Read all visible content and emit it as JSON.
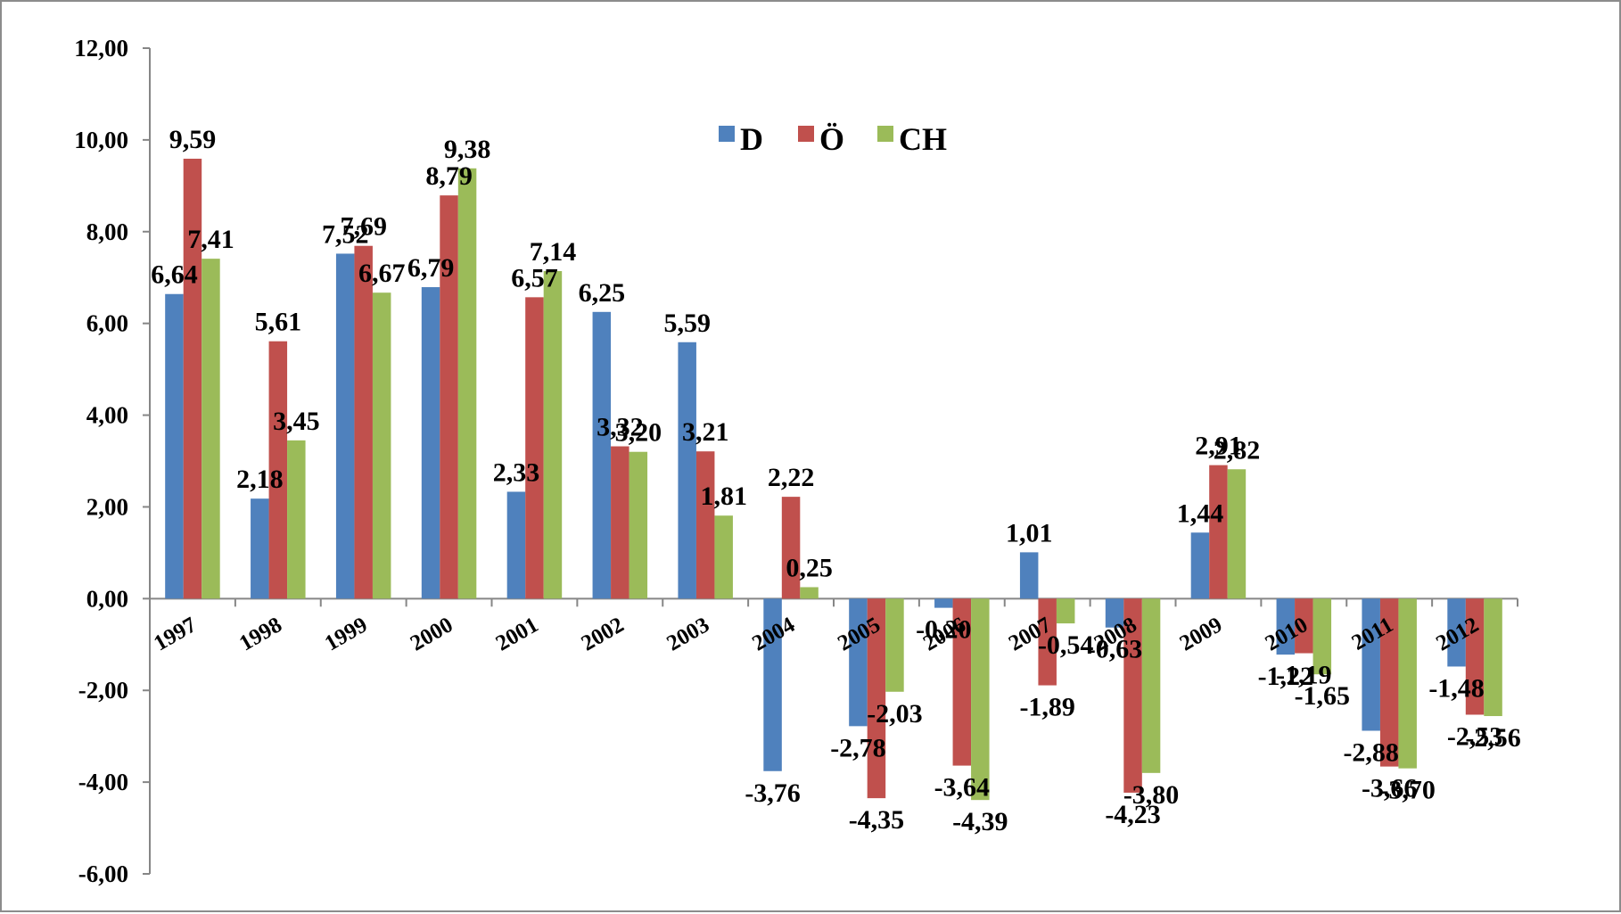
{
  "chart_data": {
    "type": "bar",
    "title": "",
    "xlabel": "",
    "ylabel": "",
    "ylim": [
      -6,
      12
    ],
    "yticks": [
      "12,00",
      "10,00",
      "8,00",
      "6,00",
      "4,00",
      "2,00",
      "0,00",
      "-2,00",
      "-4,00",
      "-6,00"
    ],
    "ytick_values": [
      12,
      10,
      8,
      6,
      4,
      2,
      0,
      -2,
      -4,
      -6
    ],
    "grid": false,
    "legend_position": "top-center",
    "categories": [
      "1997",
      "1998",
      "1999",
      "2000",
      "2001",
      "2002",
      "2003",
      "2004",
      "2005",
      "2006",
      "2007",
      "2008",
      "2009",
      "2010",
      "2011",
      "2012"
    ],
    "series": [
      {
        "name": "D",
        "color": "#4f81bd",
        "values": [
          6.64,
          2.18,
          7.52,
          6.79,
          2.33,
          6.25,
          5.59,
          -3.76,
          -2.78,
          -0.2,
          1.01,
          -0.63,
          1.44,
          -1.22,
          -2.88,
          -1.48
        ],
        "labels": [
          "6,64",
          "2,18",
          "7,52",
          "6,79",
          "2,33",
          "6,25",
          "5,59",
          "-3,76",
          "-2,78",
          "-0,20",
          "1,01",
          "-0,63",
          "1,44",
          "-1,22",
          "-2,88",
          "-1,48"
        ]
      },
      {
        "name": "Ö",
        "color": "#c0504d",
        "values": [
          9.59,
          5.61,
          7.69,
          8.79,
          6.57,
          3.32,
          3.21,
          2.22,
          -4.35,
          -3.64,
          -1.89,
          -4.23,
          2.91,
          -1.19,
          -3.66,
          -2.53
        ],
        "labels": [
          "9,59",
          "5,61",
          "7,69",
          "8,79",
          "6,57",
          "3,32",
          "3,21",
          "2,22",
          "-4,35",
          "-3,64",
          "-1,89",
          "-4,23",
          "2,91",
          "-1,19",
          "-3,66",
          "-2,53"
        ]
      },
      {
        "name": "CH",
        "color": "#9bbb59",
        "values": [
          7.41,
          3.45,
          6.67,
          9.38,
          7.14,
          3.2,
          1.81,
          0.25,
          -2.03,
          -4.39,
          -0.54,
          -3.8,
          2.82,
          -1.65,
          -3.7,
          -2.56
        ],
        "labels": [
          "7,41",
          "3,45",
          "6,67",
          "9,38",
          "7,14",
          "3,20",
          "1,81",
          "0,25",
          "-2,03",
          "-4,39",
          "-0,54",
          "-3,80",
          "2,82",
          "-1,65",
          "-3,70",
          "-2,56"
        ]
      }
    ]
  }
}
